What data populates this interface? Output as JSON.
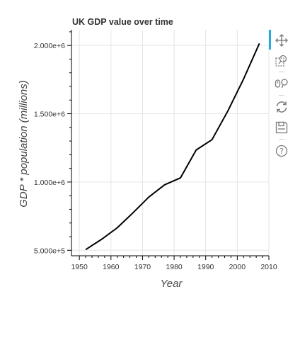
{
  "chart_data": {
    "type": "line",
    "title": "UK GDP value over time",
    "xlabel": "Year",
    "ylabel": "GDP * population (millions)",
    "xlim": [
      1947.5,
      2010
    ],
    "ylim": [
      460000,
      2115000
    ],
    "x_ticks": [
      1950,
      1960,
      1970,
      1980,
      1990,
      2000,
      2010
    ],
    "y_ticks": [
      500000,
      1000000,
      1500000,
      2000000
    ],
    "y_tick_labels": [
      "5.000e+5",
      "1.000e+6",
      "1.500e+6",
      "2.000e+6"
    ],
    "grid": true,
    "series": [
      {
        "color": "#000000",
        "x": [
          1952,
          1957,
          1962,
          1967,
          1972,
          1977,
          1982,
          1987,
          1992,
          1997,
          2002,
          2007
        ],
        "values": [
          505000,
          580000,
          665000,
          775000,
          890000,
          980000,
          1030000,
          1235000,
          1310000,
          1520000,
          1755000,
          2015000
        ]
      }
    ]
  },
  "toolbar": {
    "tools": [
      "pan-icon",
      "box-zoom-icon",
      "wheel-zoom-icon",
      "reset-icon",
      "save-icon",
      "help-icon"
    ],
    "active_color": "#26aae1"
  }
}
